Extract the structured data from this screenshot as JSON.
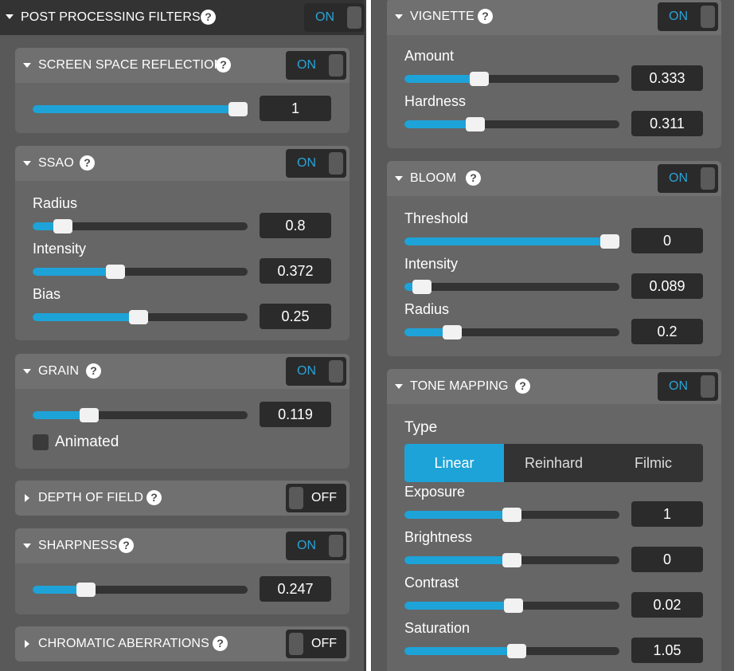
{
  "left": {
    "header": {
      "title": "POST PROCESSING FILTERS",
      "help": "?",
      "toggle": "ON"
    },
    "ssr": {
      "title": "SCREEN SPACE REFLECTION",
      "help": "?",
      "toggle": "ON",
      "value": "1",
      "fraction": 1.0
    },
    "ssao": {
      "title": "SSAO",
      "help": "?",
      "toggle": "ON",
      "radius": {
        "label": "Radius",
        "value": "0.8",
        "fraction": 0.14
      },
      "intensity": {
        "label": "Intensity",
        "value": "0.372",
        "fraction": 0.387
      },
      "bias": {
        "label": "Bias",
        "value": "0.25",
        "fraction": 0.493
      }
    },
    "grain": {
      "title": "GRAIN",
      "help": "?",
      "toggle": "ON",
      "value": "0.119",
      "fraction": 0.264,
      "animated_label": "Animated"
    },
    "dof": {
      "title": "DEPTH OF FIELD",
      "help": "?",
      "toggle": "OFF"
    },
    "sharpness": {
      "title": "SHARPNESS",
      "help": "?",
      "toggle": "ON",
      "value": "0.247",
      "fraction": 0.248
    },
    "chromatic": {
      "title": "CHROMATIC ABERRATIONS",
      "help": "?",
      "toggle": "OFF"
    }
  },
  "right": {
    "vignette": {
      "title": "VIGNETTE",
      "help": "?",
      "toggle": "ON",
      "amount": {
        "label": "Amount",
        "value": "0.333",
        "fraction": 0.348
      },
      "hardness": {
        "label": "Hardness",
        "value": "0.311",
        "fraction": 0.329
      }
    },
    "bloom": {
      "title": "BLOOM",
      "help": "?",
      "toggle": "ON",
      "threshold": {
        "label": "Threshold",
        "value": "0.0",
        "display": "0",
        "fraction": 0.956
      },
      "intensity": {
        "label": "Intensity",
        "value": "0.089",
        "fraction": 0.081
      },
      "radius": {
        "label": "Radius",
        "value": "0.2",
        "fraction": 0.222
      }
    },
    "tone": {
      "title": "TONE MAPPING",
      "help": "?",
      "toggle": "ON",
      "type_label": "Type",
      "types": [
        "Linear",
        "Reinhard",
        "Filmic"
      ],
      "selected_type": "Linear",
      "exposure": {
        "label": "Exposure",
        "value": "1",
        "fraction": 0.5
      },
      "brightness": {
        "label": "Brightness",
        "value": "0",
        "fraction": 0.5
      },
      "contrast": {
        "label": "Contrast",
        "value": "0.02",
        "fraction": 0.507
      },
      "saturation": {
        "label": "Saturation",
        "value": "1.05",
        "fraction": 0.522
      }
    }
  },
  "colors": {
    "accent": "#1ea3d8",
    "panel": "#595959",
    "card": "#666666",
    "header": "#707070",
    "main_header": "#333333"
  }
}
